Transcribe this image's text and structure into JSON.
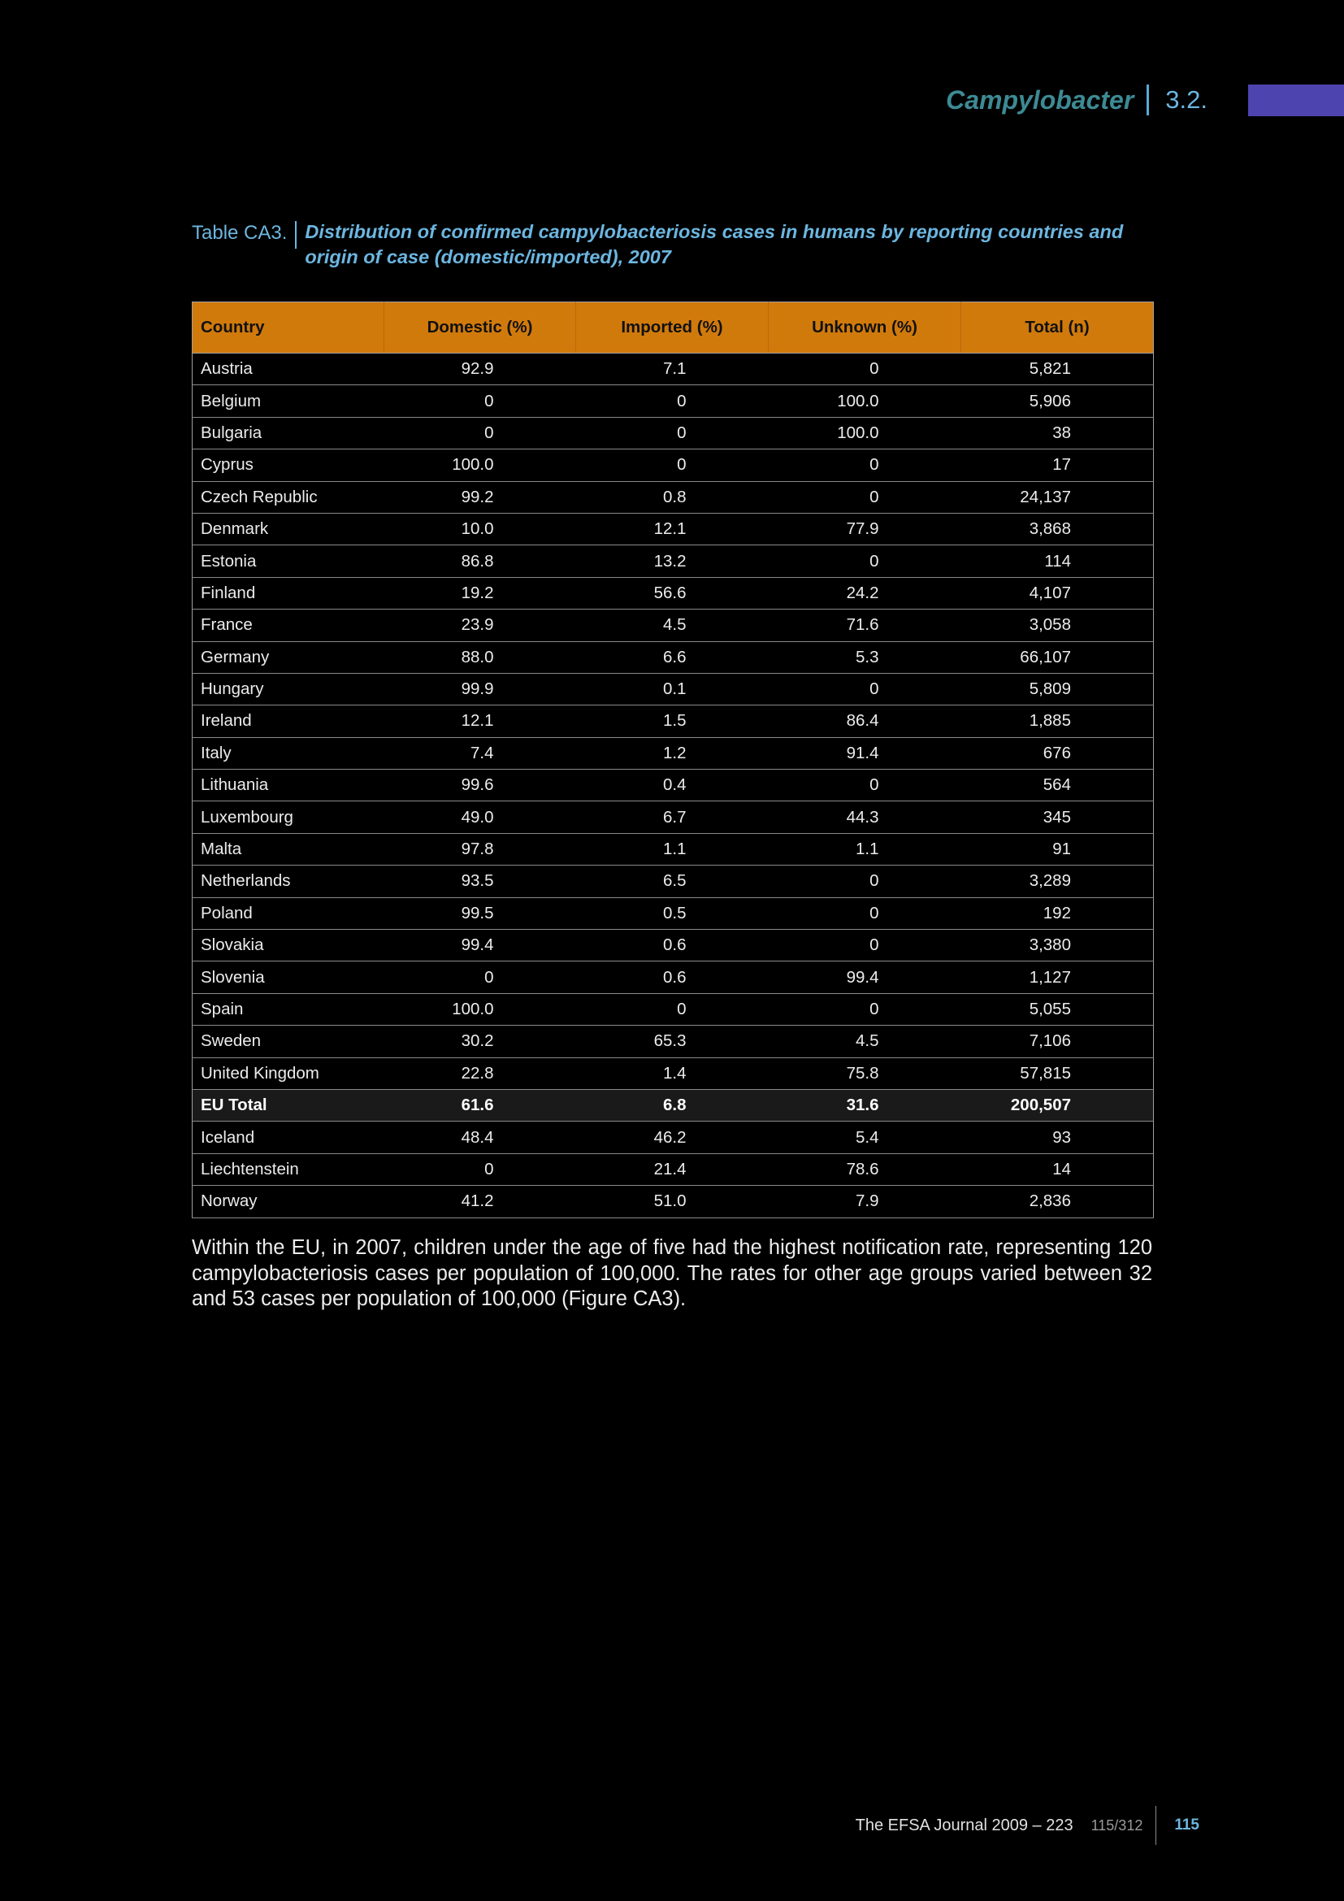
{
  "header": {
    "chapter": "Campylobacter",
    "section": "3.2."
  },
  "caption": {
    "label": "Table CA3.",
    "title": "Distribution of confirmed campylobacteriosis cases in humans by reporting countries and origin of case (domestic/imported), 2007"
  },
  "table": {
    "headers": [
      "Country",
      "Domestic (%)",
      "Imported (%)",
      "Unknown (%)",
      "Total (n)"
    ],
    "rows": [
      {
        "country": "Austria",
        "domestic": "92.9",
        "imported": "7.1",
        "unknown": "0",
        "total": "5,821"
      },
      {
        "country": "Belgium",
        "domestic": "0",
        "imported": "0",
        "unknown": "100.0",
        "total": "5,906"
      },
      {
        "country": "Bulgaria",
        "domestic": "0",
        "imported": "0",
        "unknown": "100.0",
        "total": "38"
      },
      {
        "country": "Cyprus",
        "domestic": "100.0",
        "imported": "0",
        "unknown": "0",
        "total": "17"
      },
      {
        "country": "Czech Republic",
        "domestic": "99.2",
        "imported": "0.8",
        "unknown": "0",
        "total": "24,137"
      },
      {
        "country": "Denmark",
        "domestic": "10.0",
        "imported": "12.1",
        "unknown": "77.9",
        "total": "3,868"
      },
      {
        "country": "Estonia",
        "domestic": "86.8",
        "imported": "13.2",
        "unknown": "0",
        "total": "114"
      },
      {
        "country": "Finland",
        "domestic": "19.2",
        "imported": "56.6",
        "unknown": "24.2",
        "total": "4,107"
      },
      {
        "country": "France",
        "domestic": "23.9",
        "imported": "4.5",
        "unknown": "71.6",
        "total": "3,058"
      },
      {
        "country": "Germany",
        "domestic": "88.0",
        "imported": "6.6",
        "unknown": "5.3",
        "total": "66,107"
      },
      {
        "country": "Hungary",
        "domestic": "99.9",
        "imported": "0.1",
        "unknown": "0",
        "total": "5,809"
      },
      {
        "country": "Ireland",
        "domestic": "12.1",
        "imported": "1.5",
        "unknown": "86.4",
        "total": "1,885"
      },
      {
        "country": "Italy",
        "domestic": "7.4",
        "imported": "1.2",
        "unknown": "91.4",
        "total": "676"
      },
      {
        "country": "Lithuania",
        "domestic": "99.6",
        "imported": "0.4",
        "unknown": "0",
        "total": "564"
      },
      {
        "country": "Luxembourg",
        "domestic": "49.0",
        "imported": "6.7",
        "unknown": "44.3",
        "total": "345"
      },
      {
        "country": "Malta",
        "domestic": "97.8",
        "imported": "1.1",
        "unknown": "1.1",
        "total": "91"
      },
      {
        "country": "Netherlands",
        "domestic": "93.5",
        "imported": "6.5",
        "unknown": "0",
        "total": "3,289"
      },
      {
        "country": "Poland",
        "domestic": "99.5",
        "imported": "0.5",
        "unknown": "0",
        "total": "192"
      },
      {
        "country": "Slovakia",
        "domestic": "99.4",
        "imported": "0.6",
        "unknown": "0",
        "total": "3,380"
      },
      {
        "country": "Slovenia",
        "domestic": "0",
        "imported": "0.6",
        "unknown": "99.4",
        "total": "1,127"
      },
      {
        "country": "Spain",
        "domestic": "100.0",
        "imported": "0",
        "unknown": "0",
        "total": "5,055"
      },
      {
        "country": "Sweden",
        "domestic": "30.2",
        "imported": "65.3",
        "unknown": "4.5",
        "total": "7,106"
      },
      {
        "country": "United Kingdom",
        "domestic": "22.8",
        "imported": "1.4",
        "unknown": "75.8",
        "total": "57,815"
      },
      {
        "country": "EU Total",
        "domestic": "61.6",
        "imported": "6.8",
        "unknown": "31.6",
        "total": "200,507",
        "is_total": true
      },
      {
        "country": "Iceland",
        "domestic": "48.4",
        "imported": "46.2",
        "unknown": "5.4",
        "total": "93"
      },
      {
        "country": "Liechtenstein",
        "domestic": "0",
        "imported": "21.4",
        "unknown": "78.6",
        "total": "14"
      },
      {
        "country": "Norway",
        "domestic": "41.2",
        "imported": "51.0",
        "unknown": "7.9",
        "total": "2,836"
      }
    ]
  },
  "body_text": "Within the EU, in 2007, children under the age of five had the highest notification rate, representing 120 campylobacteriosis cases per population of 100,000. The rates for other age groups varied between 32 and 53 cases per population of 100,000 (Figure CA3).",
  "footer": {
    "journal": "The EFSA Journal 2009 – 223",
    "page_ref": "115/312",
    "page_number": "115"
  },
  "colors": {
    "accent_blue": "#6cb6e0",
    "header_teal": "#3d8a94",
    "table_header_orange": "#d17a0c",
    "tab_marker_purple": "#4e44b0"
  }
}
